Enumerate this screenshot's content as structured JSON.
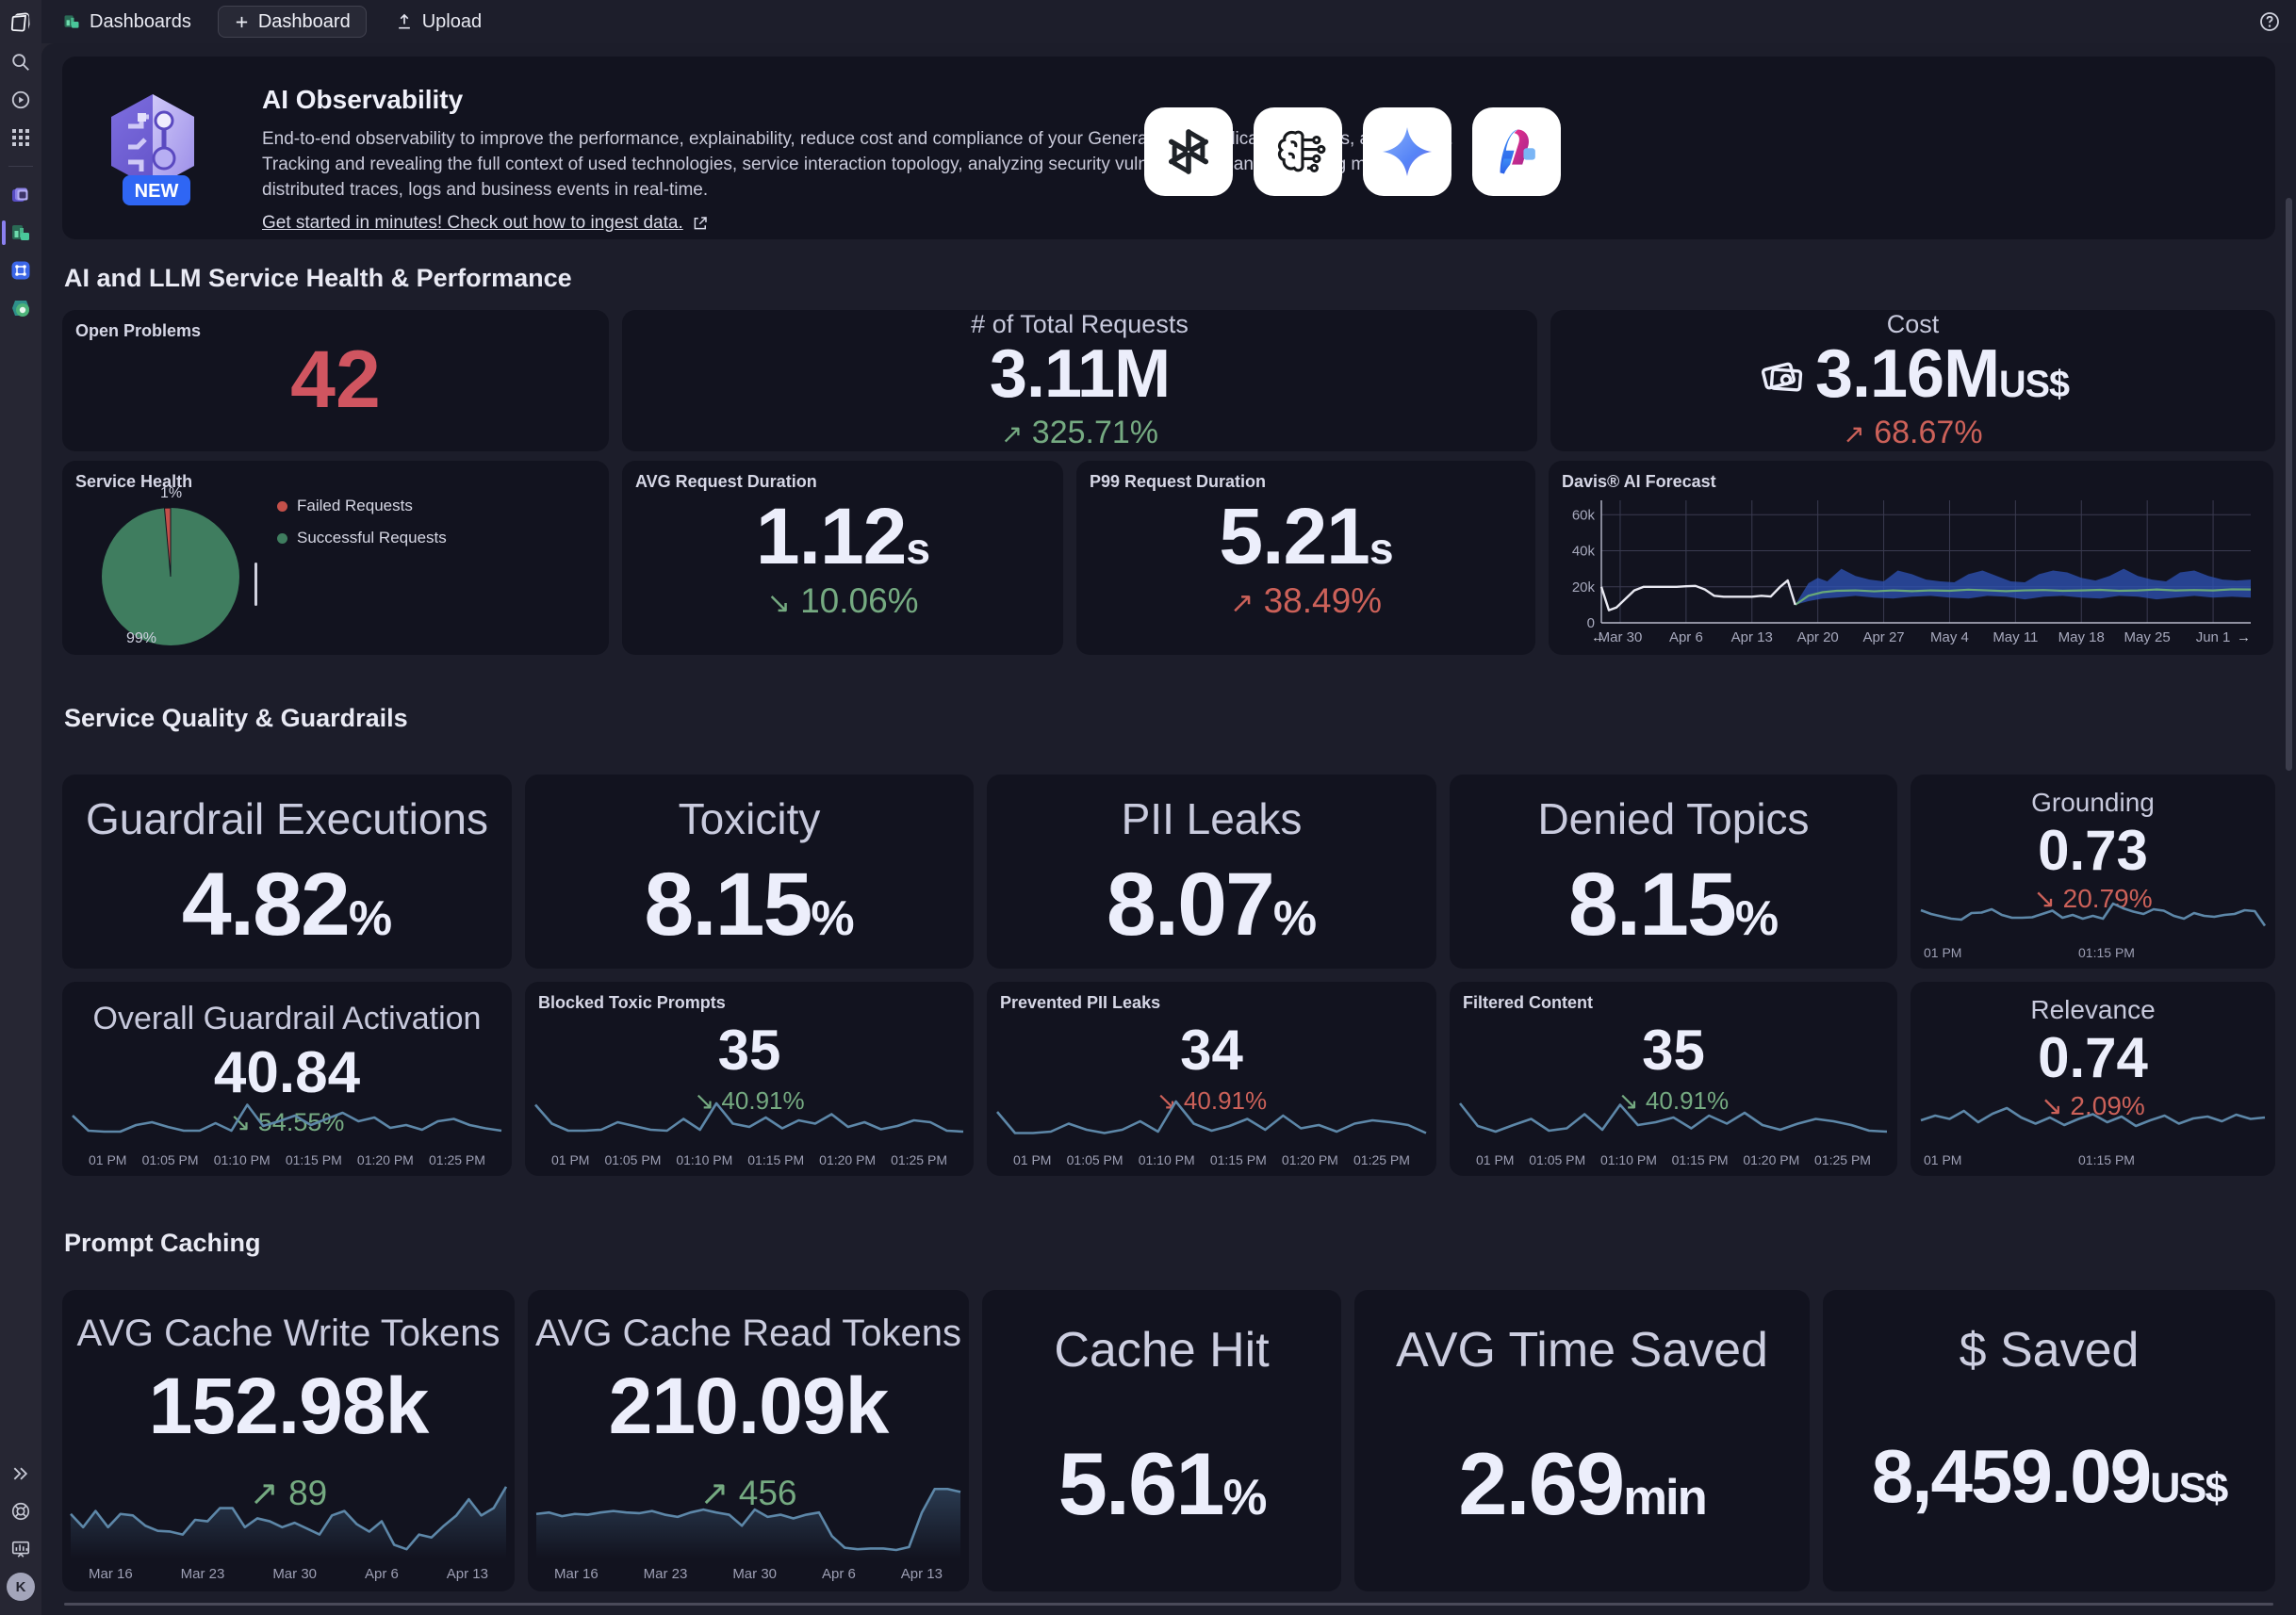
{
  "topbar": {
    "menu_dashboards": "Dashboards",
    "tab_dashboard": "Dashboard",
    "upload": "Upload"
  },
  "sidebar": {
    "avatar_initial": "K"
  },
  "hero": {
    "title": "AI Observability",
    "badge": "NEW",
    "description_lines": [
      "End-to-end observability to improve the performance, explainability, reduce cost and compliance of your Generative AI applications, LLMs, and agents.",
      "Tracking and revealing the full context of used technologies, service interaction topology, analyzing security vulnerabilities, and observing metrics,",
      "distributed traces, logs and business events in real-time."
    ],
    "link": "Get started in minutes! Check out how to ingest data.",
    "logos": [
      "openai-logo",
      "ai-brain-logo",
      "gemini-logo",
      "azure-ai-foundry-logo"
    ]
  },
  "sections": {
    "health": "AI and LLM Service Health & Performance",
    "quality": "Service Quality & Guardrails",
    "caching": "Prompt Caching"
  },
  "tiles": {
    "open_problems": {
      "label": "Open Problems",
      "value": "42"
    },
    "total_requests": {
      "title": "# of Total Requests",
      "value": "3.11M",
      "arrow": "↗",
      "trend": "325.71%"
    },
    "cost": {
      "title": "Cost",
      "value": "3.16M",
      "unit": "US$",
      "arrow": "↗",
      "trend": "68.67%"
    },
    "service_health": {
      "label": "Service Health",
      "top_label": "1%",
      "bottom_label": "99%",
      "legend": [
        {
          "name": "Failed Requests",
          "color": "#c4504a",
          "pct": 1
        },
        {
          "name": "Successful Requests",
          "color": "#3f7d5f",
          "pct": 99
        }
      ]
    },
    "avg_duration": {
      "title": "AVG Request Duration",
      "value": "1.12",
      "unit": "s",
      "arrow": "↘",
      "trend": "10.06%"
    },
    "p99_duration": {
      "title": "P99 Request Duration",
      "value": "5.21",
      "unit": "s",
      "arrow": "↗",
      "trend": "38.49%"
    },
    "forecast": {
      "label": "Davis® AI Forecast",
      "left_arrow": "←",
      "right_arrow": "→",
      "ymax": 68,
      "xmax": 69,
      "y_ticks": [
        {
          "v": 0,
          "l": "0"
        },
        {
          "v": 20,
          "l": "20k"
        },
        {
          "v": 40,
          "l": "40k"
        },
        {
          "v": 60,
          "l": "60k"
        }
      ],
      "x_ticks": [
        {
          "x": 2,
          "l": "Mar 30"
        },
        {
          "x": 9,
          "l": "Apr 6"
        },
        {
          "x": 16,
          "l": "Apr 13"
        },
        {
          "x": 23,
          "l": "Apr 20"
        },
        {
          "x": 30,
          "l": "Apr 27"
        },
        {
          "x": 37,
          "l": "May 4"
        },
        {
          "x": 44,
          "l": "May 11"
        },
        {
          "x": 51,
          "l": "May 18"
        },
        {
          "x": 58,
          "l": "May 25"
        },
        {
          "x": 65,
          "l": "Jun 1"
        }
      ],
      "history": [
        [
          0,
          20
        ],
        [
          0.8,
          7
        ],
        [
          1.6,
          8.5
        ],
        [
          2.5,
          13
        ],
        [
          3.5,
          18
        ],
        [
          4.5,
          20
        ],
        [
          6,
          20
        ],
        [
          8,
          20
        ],
        [
          9,
          20.3
        ],
        [
          10,
          20.5
        ],
        [
          11,
          18.5
        ],
        [
          12,
          15
        ],
        [
          13,
          14.5
        ],
        [
          14.5,
          14.5
        ],
        [
          16,
          14.5
        ],
        [
          17,
          15
        ],
        [
          18,
          14.6
        ],
        [
          19,
          20
        ],
        [
          19.8,
          23.5
        ],
        [
          20.6,
          10
        ]
      ],
      "median": [
        [
          20.6,
          10
        ],
        [
          22,
          15
        ],
        [
          23.5,
          17
        ],
        [
          25,
          17.8
        ],
        [
          27,
          18
        ],
        [
          29,
          17.5
        ],
        [
          31,
          18
        ],
        [
          33,
          17.6
        ],
        [
          35,
          18
        ],
        [
          37,
          17.8
        ],
        [
          39,
          18.4
        ],
        [
          41,
          18
        ],
        [
          43,
          17.6
        ],
        [
          45,
          18
        ],
        [
          47,
          18.2
        ],
        [
          49,
          17.8
        ],
        [
          51,
          18
        ],
        [
          53,
          18.3
        ],
        [
          55,
          17.8
        ],
        [
          57,
          18
        ],
        [
          59,
          18.5
        ],
        [
          61,
          18
        ],
        [
          63,
          18.2
        ],
        [
          65,
          18
        ],
        [
          67,
          18.6
        ],
        [
          69,
          18.5
        ]
      ],
      "upper": [
        [
          20.6,
          10
        ],
        [
          22,
          22
        ],
        [
          23,
          25
        ],
        [
          24,
          23
        ],
        [
          25.5,
          30
        ],
        [
          27,
          26
        ],
        [
          28.5,
          24
        ],
        [
          30,
          23
        ],
        [
          31.5,
          29
        ],
        [
          33,
          27
        ],
        [
          34.5,
          24
        ],
        [
          36,
          23
        ],
        [
          37.5,
          22.5
        ],
        [
          39,
          27
        ],
        [
          40.5,
          29
        ],
        [
          42,
          26
        ],
        [
          43.5,
          23
        ],
        [
          45,
          22.5
        ],
        [
          46.5,
          27
        ],
        [
          48,
          29
        ],
        [
          49.5,
          28
        ],
        [
          51,
          25
        ],
        [
          52.5,
          23.5
        ],
        [
          54,
          26
        ],
        [
          55.5,
          30
        ],
        [
          57,
          26
        ],
        [
          58.5,
          24
        ],
        [
          60,
          23
        ],
        [
          61.5,
          28
        ],
        [
          63,
          29
        ],
        [
          64.5,
          26
        ],
        [
          66,
          24
        ],
        [
          67.5,
          23.5
        ],
        [
          69,
          24
        ]
      ],
      "lower": [
        [
          20.6,
          10
        ],
        [
          22,
          12
        ],
        [
          23.5,
          13.5
        ],
        [
          25,
          14
        ],
        [
          27,
          15
        ],
        [
          29,
          14
        ],
        [
          31,
          13.5
        ],
        [
          33,
          14.5
        ],
        [
          35,
          15
        ],
        [
          37,
          14
        ],
        [
          39,
          13.5
        ],
        [
          41,
          15
        ],
        [
          43,
          14.5
        ],
        [
          45,
          13
        ],
        [
          47,
          14.5
        ],
        [
          49,
          15
        ],
        [
          51,
          14
        ],
        [
          53,
          13.5
        ],
        [
          55,
          15
        ],
        [
          57,
          14.5
        ],
        [
          59,
          13
        ],
        [
          61,
          14
        ],
        [
          63,
          15
        ],
        [
          65,
          14
        ],
        [
          67,
          14.5
        ],
        [
          69,
          14
        ]
      ]
    },
    "guardrail_executions": {
      "title": "Guardrail Executions",
      "value": "4.82",
      "unit": "%"
    },
    "toxicity": {
      "title": "Toxicity",
      "value": "8.15",
      "unit": "%"
    },
    "pii_leaks": {
      "title": "PII Leaks",
      "value": "8.07",
      "unit": "%"
    },
    "denied_topics": {
      "title": "Denied Topics",
      "value": "8.15",
      "unit": "%"
    },
    "grounding": {
      "title": "Grounding",
      "value": "0.73",
      "arrow": "↘",
      "trend": "20.79%",
      "ticks": [
        "01 PM",
        "01:15 PM"
      ],
      "spark": [
        58,
        50,
        45,
        40,
        38,
        52,
        53,
        60,
        48,
        42,
        42,
        43,
        50,
        57,
        42,
        48,
        40,
        46,
        40,
        72,
        62,
        55,
        50,
        60,
        57,
        46,
        40,
        52,
        46,
        44,
        48,
        50,
        58,
        56,
        25
      ]
    },
    "overall_guardrail_activation": {
      "title": "Overall Guardrail Activation",
      "value": "40.84",
      "arrow": "↘",
      "trend": "54.55%",
      "ticks": [
        "01 PM",
        "01:05 PM",
        "01:10 PM",
        "01:15 PM",
        "01:20 PM",
        "01:25 PM"
      ],
      "spark": [
        62,
        30,
        28,
        28,
        42,
        48,
        38,
        30,
        30,
        46,
        30,
        85,
        40,
        50,
        62,
        42,
        55,
        68,
        50,
        58,
        36,
        42,
        32,
        50,
        55,
        42,
        35,
        30
      ]
    },
    "blocked_toxic_prompts": {
      "label": "Blocked Toxic Prompts",
      "value": "35",
      "arrow": "↘",
      "trend": "40.91%",
      "ticks": [
        "01 PM",
        "01:05 PM",
        "01:10 PM",
        "01:15 PM",
        "01:20 PM",
        "01:25 PM"
      ],
      "spark": [
        85,
        45,
        30,
        30,
        32,
        48,
        40,
        32,
        30,
        55,
        32,
        88,
        45,
        38,
        58,
        35,
        52,
        45,
        65,
        38,
        48,
        33,
        40,
        52,
        48,
        30,
        28
      ]
    },
    "prevented_pii_leaks": {
      "label": "Prevented PII Leaks",
      "value": "34",
      "arrow": "↘",
      "trend": "40.91%",
      "ticks": [
        "01 PM",
        "01:05 PM",
        "01:10 PM",
        "01:15 PM",
        "01:20 PM",
        "01:25 PM"
      ],
      "spark": [
        70,
        25,
        25,
        28,
        45,
        32,
        25,
        32,
        50,
        28,
        92,
        45,
        30,
        40,
        55,
        32,
        62,
        35,
        42,
        28,
        45,
        52,
        48,
        42,
        25
      ]
    },
    "filtered_content": {
      "label": "Filtered Content",
      "value": "35",
      "arrow": "↘",
      "trend": "40.91%",
      "ticks": [
        "01 PM",
        "01:05 PM",
        "01:10 PM",
        "01:15 PM",
        "01:20 PM",
        "01:25 PM"
      ],
      "spark": [
        88,
        40,
        28,
        42,
        55,
        30,
        35,
        65,
        32,
        85,
        42,
        48,
        58,
        35,
        62,
        45,
        68,
        42,
        32,
        45,
        55,
        50,
        42,
        30,
        28
      ]
    },
    "relevance": {
      "title": "Relevance",
      "value": "0.74",
      "arrow": "↘",
      "trend": "2.09%",
      "ticks": [
        "01 PM",
        "01:15 PM"
      ],
      "spark": [
        52,
        62,
        55,
        72,
        48,
        66,
        78,
        58,
        45,
        58,
        42,
        55,
        65,
        48,
        60,
        40,
        52,
        62,
        45,
        56,
        60,
        50,
        64,
        55,
        58
      ]
    },
    "cache_write": {
      "title": "AVG Cache Write Tokens",
      "value": "152.98k",
      "arrow": "↗",
      "trend": "89",
      "ticks": [
        "Mar 16",
        "Mar 23",
        "Mar 30",
        "Apr 6",
        "Apr 13"
      ],
      "spark": [
        58,
        40,
        62,
        40,
        58,
        56,
        42,
        35,
        34,
        30,
        50,
        48,
        66,
        66,
        40,
        52,
        48,
        40,
        46,
        38,
        30,
        56,
        62,
        44,
        34,
        48,
        16,
        10,
        30,
        26,
        42,
        56,
        78,
        56,
        66,
        95
      ]
    },
    "cache_read": {
      "title": "AVG Cache Read Tokens",
      "value": "210.09k",
      "arrow": "↗",
      "trend": "456",
      "ticks": [
        "Mar 16",
        "Mar 23",
        "Mar 30",
        "Apr 6",
        "Apr 13"
      ],
      "spark": [
        58,
        60,
        55,
        58,
        57,
        60,
        62,
        60,
        59,
        62,
        57,
        54,
        60,
        64,
        60,
        57,
        42,
        64,
        54,
        57,
        52,
        57,
        60,
        28,
        12,
        10,
        11,
        11,
        9,
        13,
        60,
        92,
        92,
        88
      ]
    },
    "cache_hit": {
      "title": "Cache Hit",
      "value": "5.61",
      "unit": "%"
    },
    "time_saved": {
      "title": "AVG Time Saved",
      "value": "2.69",
      "unit": "min"
    },
    "dollar_saved": {
      "title": "$ Saved",
      "value": "8,459.09",
      "unit": "US$"
    }
  },
  "colors": {
    "accent_purple": "#8b80f0",
    "spark_blue": "#5d87a8",
    "good_green": "#75aa81",
    "bad_red": "#cc6159",
    "problem_red": "#d05560",
    "pie_green": "#3f7d5f",
    "pie_red": "#c4504a",
    "band_blue": "#2f54b8",
    "forecast_green": "#68a878"
  }
}
